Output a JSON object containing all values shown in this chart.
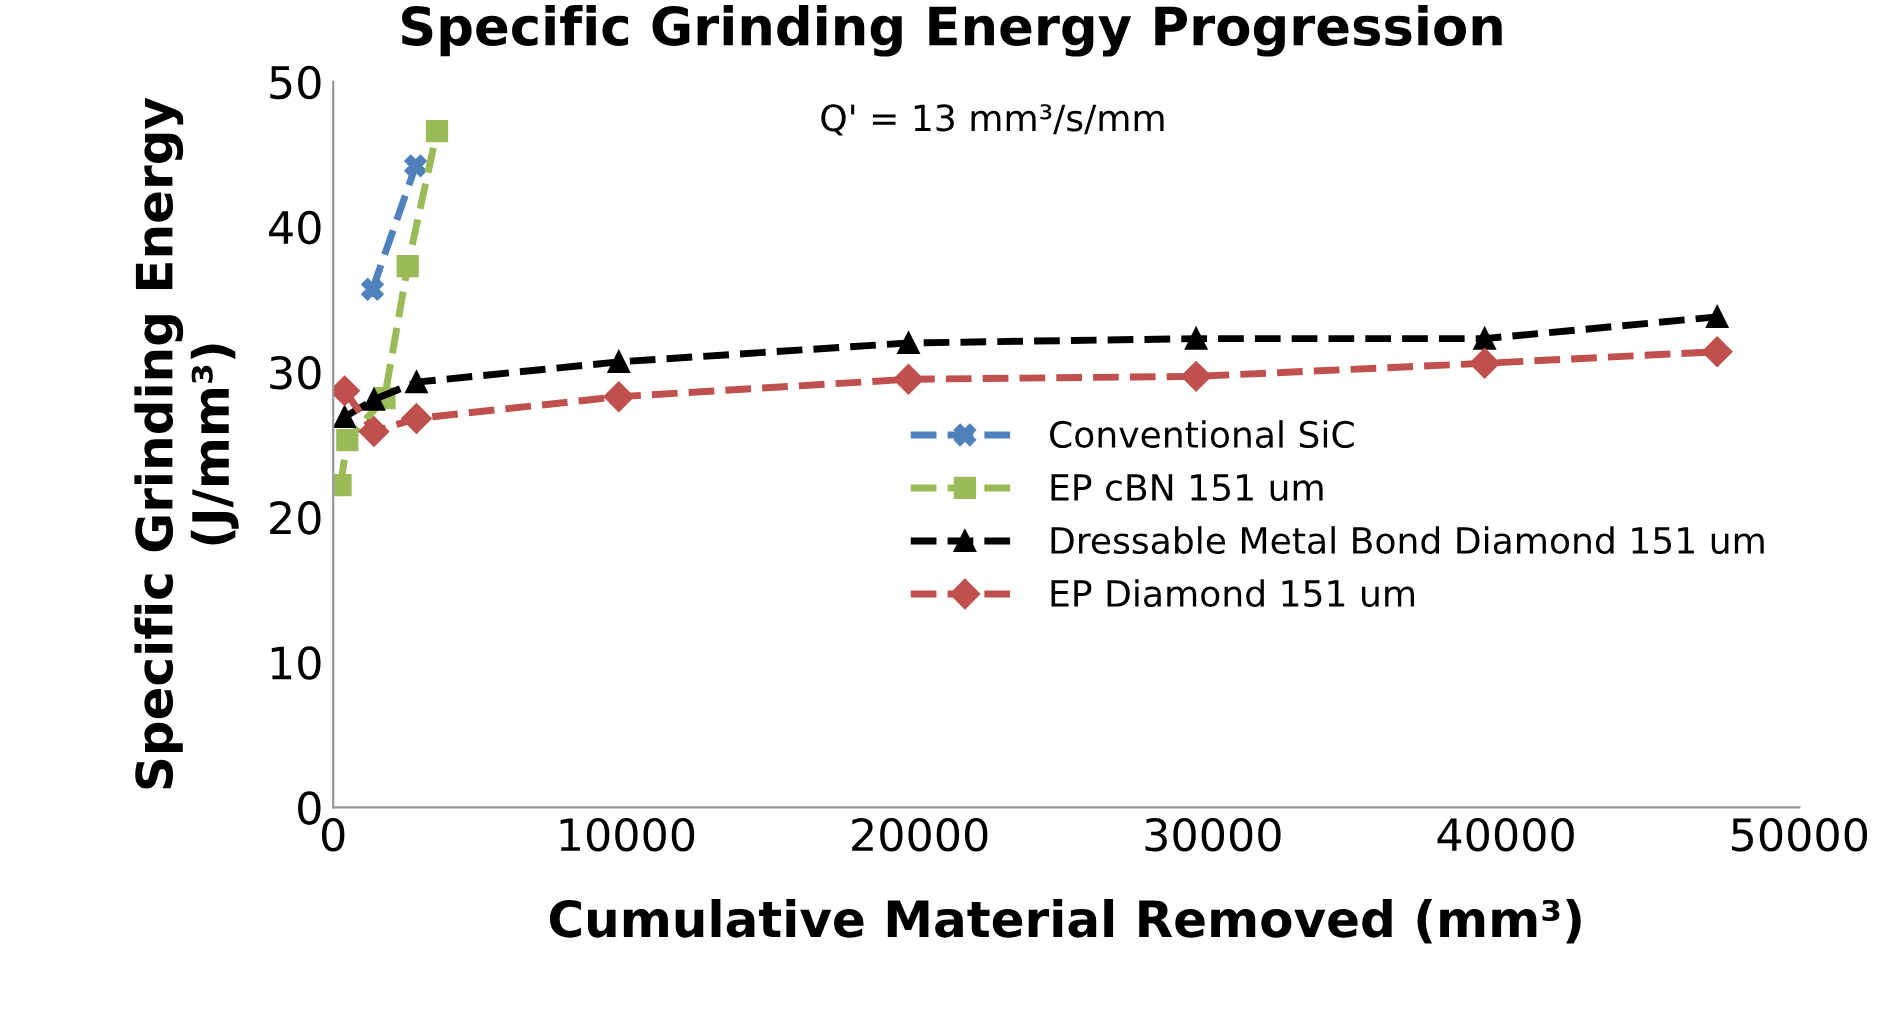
{
  "chart_data": {
    "type": "line",
    "title": "Specific Grinding Energy Progression",
    "xlabel": "Cumulative Material Removed (mm³)",
    "ylabel": "Specific Grinding Energy\n(J/mm³)",
    "annotations": [
      "Q' = 13 mm³/s/mm"
    ],
    "xlim": [
      0,
      50000
    ],
    "xticks": [
      0,
      10000,
      20000,
      30000,
      40000,
      50000
    ],
    "ylim": [
      0,
      50
    ],
    "yticks": [
      0,
      10,
      20,
      30,
      40,
      50
    ],
    "grid": false,
    "legend": "right",
    "line_style": "dashed",
    "series": [
      {
        "name": "Conventional SiC",
        "color": "#4f81bd",
        "marker": "cross",
        "x": [
          1340,
          2810
        ],
        "values": [
          35.7,
          44.2
        ]
      },
      {
        "name": "EP cBN 151 um",
        "color": "#9bbb59",
        "marker": "square",
        "x": [
          250,
          480,
          1750,
          2540,
          3540
        ],
        "values": [
          22.2,
          25.3,
          28.2,
          37.3,
          46.6
        ]
      },
      {
        "name": "Dressable Metal Bond Diamond 151 um",
        "color": "#000000",
        "marker": "triangle",
        "x": [
          390,
          1390,
          2840,
          9740,
          19620,
          29430,
          39270,
          47200
        ],
        "values": [
          26.9,
          28.1,
          29.3,
          30.7,
          32.0,
          32.3,
          32.3,
          33.8
        ]
      },
      {
        "name": "EP Diamond 151 um",
        "color": "#c0504d",
        "marker": "diamond",
        "x": [
          390,
          1390,
          2840,
          9740,
          19620,
          29430,
          39270,
          47200
        ],
        "values": [
          28.7,
          25.9,
          26.8,
          28.3,
          29.5,
          29.7,
          30.6,
          31.4
        ]
      }
    ]
  }
}
